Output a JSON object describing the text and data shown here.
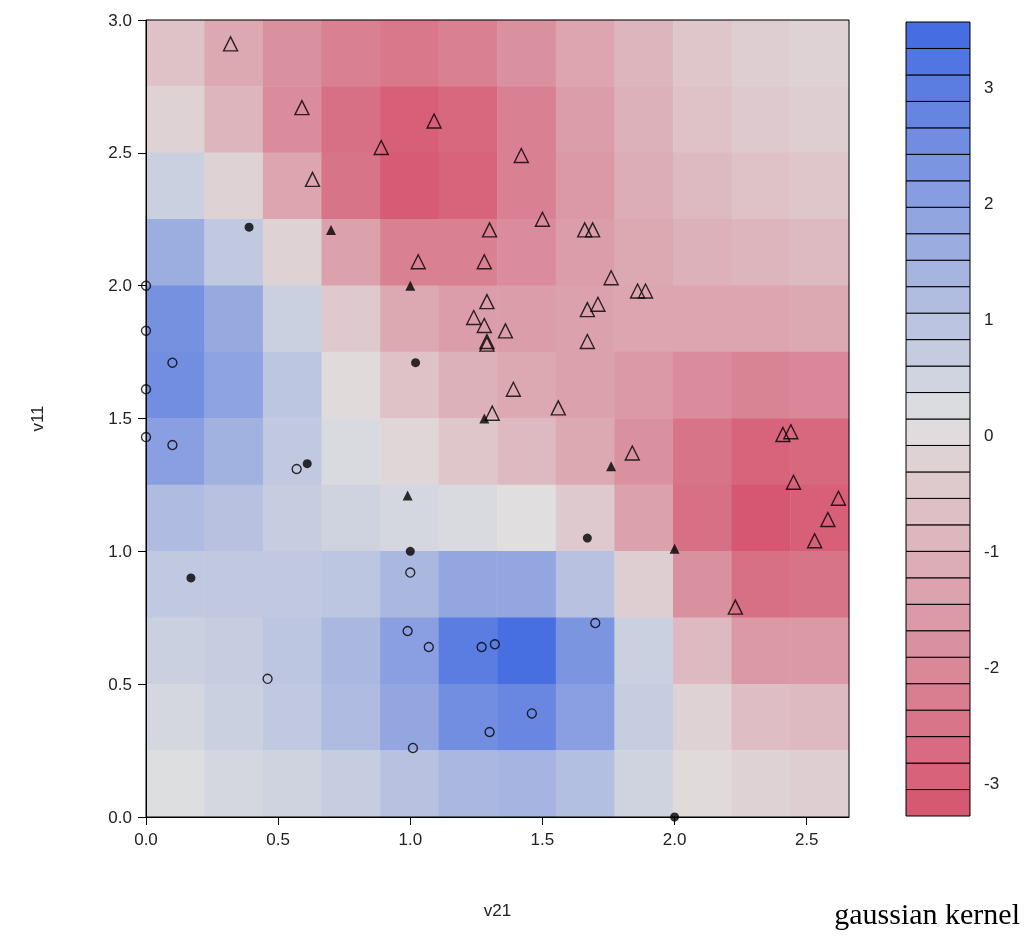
{
  "chart_data": [
    {
      "type": "heatmap",
      "categories": [
        null,
        null,
        null,
        null,
        null,
        null,
        null,
        null,
        null,
        null,
        null,
        null
      ],
      "y_categories": [
        null,
        null,
        null,
        null,
        null,
        null,
        null,
        null,
        null,
        null,
        null,
        null
      ],
      "clim": [
        -3.28,
        3.56
      ],
      "cticks": [
        -3,
        -2,
        -1,
        0,
        1,
        2,
        3
      ],
      "colors": [
        "#d6546e",
        "#e0e0e0",
        "#4169e1"
      ],
      "cells": [
        [
          -0.6,
          -1.2,
          -1.8,
          -2.2,
          -2.4,
          -2.2,
          -1.8,
          -1.3,
          -0.9,
          -0.5,
          -0.3,
          -0.2
        ],
        [
          -0.2,
          -0.9,
          -1.9,
          -2.6,
          -3.0,
          -2.8,
          -2.2,
          -1.5,
          -1.0,
          -0.6,
          -0.4,
          -0.3
        ],
        [
          0.6,
          -0.2,
          -1.3,
          -2.5,
          -3.1,
          -2.9,
          -2.2,
          -1.6,
          -1.1,
          -0.8,
          -0.6,
          -0.5
        ],
        [
          1.6,
          0.8,
          -0.2,
          -1.4,
          -2.2,
          -2.2,
          -1.9,
          -1.5,
          -1.2,
          -1.0,
          -0.9,
          -0.8
        ],
        [
          2.4,
          1.7,
          0.6,
          -0.4,
          -1.2,
          -1.5,
          -1.5,
          -1.4,
          -1.3,
          -1.3,
          -1.3,
          -1.2
        ],
        [
          2.5,
          1.9,
          0.9,
          0.0,
          -0.6,
          -1.0,
          -1.2,
          -1.4,
          -1.6,
          -1.9,
          -2.1,
          -2.0
        ],
        [
          2.0,
          1.5,
          0.8,
          0.3,
          -0.1,
          -0.5,
          -0.8,
          -1.2,
          -1.8,
          -2.5,
          -2.9,
          -2.8
        ],
        [
          1.2,
          1.0,
          0.7,
          0.5,
          0.4,
          0.3,
          0.1,
          -0.4,
          -1.4,
          -2.6,
          -3.2,
          -3.0
        ],
        [
          0.8,
          0.8,
          0.8,
          0.9,
          1.3,
          1.8,
          1.8,
          1.0,
          -0.3,
          -1.8,
          -2.6,
          -2.5
        ],
        [
          0.6,
          0.7,
          0.9,
          1.3,
          2.0,
          3.0,
          3.4,
          2.3,
          0.6,
          -0.8,
          -1.6,
          -1.6
        ],
        [
          0.4,
          0.6,
          0.8,
          1.2,
          1.8,
          2.5,
          2.7,
          2.0,
          0.7,
          -0.2,
          -0.7,
          -0.8
        ],
        [
          0.2,
          0.4,
          0.5,
          0.7,
          1.0,
          1.3,
          1.4,
          1.1,
          0.5,
          0.0,
          -0.2,
          -0.3
        ]
      ]
    },
    {
      "type": "scatter",
      "xlabel": "v21",
      "ylabel": "v11",
      "annotations": [
        "gaussian kernel"
      ],
      "xlim": [
        0,
        2.66
      ],
      "ylim": [
        0,
        3
      ],
      "xticks": [
        {
          "value": 0,
          "label": "0.0"
        },
        {
          "value": 0.5,
          "label": "0.5"
        },
        {
          "value": 1,
          "label": "1.0"
        },
        {
          "value": 1.5,
          "label": "1.5"
        },
        {
          "value": 2,
          "label": "2.0"
        },
        {
          "value": 2.5,
          "label": "2.5"
        }
      ],
      "yticks": [
        {
          "value": 0,
          "label": "0.0"
        },
        {
          "value": 0.5,
          "label": "0.5"
        },
        {
          "value": 1,
          "label": "1.0"
        },
        {
          "value": 1.5,
          "label": "1.5"
        },
        {
          "value": 2,
          "label": "2.0"
        },
        {
          "value": 2.5,
          "label": "2.5"
        },
        {
          "value": 3,
          "label": "3.0"
        }
      ],
      "series": [
        {
          "marker": "triangle-open",
          "color": "#000000",
          "x": [
            0.32,
            0.59,
            1.09,
            0.89,
            1.42,
            0.63,
            1.5,
            1.3,
            1.66,
            1.69,
            1.03,
            1.28,
            1.76,
            1.86,
            1.89,
            1.29,
            1.24,
            1.67,
            1.71,
            1.28,
            1.36,
            1.29,
            1.29,
            1.67,
            1.39,
            1.56,
            1.31,
            1.84,
            2.41,
            2.44,
            2.45,
            2.58,
            2.62,
            2.53,
            2.23
          ],
          "values": [
            2.91,
            2.67,
            2.62,
            2.52,
            2.49,
            2.4,
            2.25,
            2.21,
            2.21,
            2.21,
            2.09,
            2.09,
            2.03,
            1.98,
            1.98,
            1.94,
            1.88,
            1.91,
            1.93,
            1.85,
            1.83,
            1.79,
            1.78,
            1.79,
            1.61,
            1.54,
            1.52,
            1.37,
            1.44,
            1.45,
            1.26,
            1.12,
            1.2,
            1.04,
            0.79
          ]
        },
        {
          "marker": "triangle",
          "color": "#000000",
          "x": [
            0.7,
            1.0,
            1.28,
            0.99,
            1.76,
            2.0
          ],
          "values": [
            2.21,
            2.0,
            1.5,
            1.21,
            1.32,
            1.01
          ]
        },
        {
          "marker": "circle",
          "color": "#000000",
          "x": [
            0.39,
            1.02,
            0.61,
            0.17,
            1.0,
            1.67,
            2.0
          ],
          "values": [
            2.22,
            1.71,
            1.33,
            0.9,
            1.0,
            1.05,
            0.0
          ]
        },
        {
          "marker": "circle-open",
          "color": "#000000",
          "x": [
            0,
            0,
            0,
            0,
            0.1,
            0.1,
            0.57,
            1.0,
            0.99,
            1.07,
            1.27,
            1.32,
            1.7,
            0.46,
            1.46,
            1.3,
            1.01
          ],
          "values": [
            2.0,
            1.83,
            1.61,
            1.43,
            1.71,
            1.4,
            1.31,
            0.92,
            0.7,
            0.64,
            0.64,
            0.65,
            0.73,
            0.52,
            0.39,
            0.32,
            0.26
          ]
        }
      ]
    }
  ]
}
